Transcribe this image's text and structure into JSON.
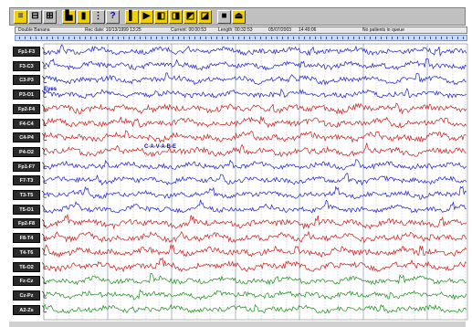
{
  "toolbar": {
    "buttons": [
      {
        "icon": "montage-icon",
        "glyph": "≡",
        "style": "y"
      },
      {
        "icon": "split-view-icon",
        "glyph": "⊟",
        "style": "n"
      },
      {
        "icon": "channels-icon",
        "glyph": "⊞",
        "style": "n"
      },
      {
        "icon": "chart-icon",
        "glyph": "▙",
        "style": "y"
      },
      {
        "icon": "book-icon",
        "glyph": "▮",
        "style": "y"
      },
      {
        "icon": "list-icon",
        "glyph": "⋮",
        "style": "n"
      },
      {
        "icon": "help-icon",
        "glyph": "?",
        "style": "q"
      },
      {
        "icon": "marker-icon",
        "glyph": "▌",
        "style": "y"
      },
      {
        "icon": "play-icon",
        "glyph": "▶",
        "style": "y"
      },
      {
        "icon": "doc1-icon",
        "glyph": "◧",
        "style": "y"
      },
      {
        "icon": "doc2-icon",
        "glyph": "◨",
        "style": "y"
      },
      {
        "icon": "doc3-icon",
        "glyph": "◩",
        "style": "y"
      },
      {
        "icon": "doc4-icon",
        "glyph": "◪",
        "style": "y"
      },
      {
        "icon": "stop-icon",
        "glyph": "■",
        "style": "n"
      },
      {
        "icon": "exit-icon",
        "glyph": "⏏",
        "style": "y"
      }
    ]
  },
  "infobar": {
    "montage": "Double Banana",
    "rec_date": "Rec date: 10/13/1999 13:25",
    "current": "Current: 00:00:53",
    "length": "Length: 00:32:53",
    "date": "05/07/2003",
    "time": "14:49:06",
    "patient": "No patients in queue"
  },
  "channels": [
    "Fp1-F3",
    "F3-C3",
    "C3-P3",
    "P3-O1",
    "Fp2-F4",
    "F4-C4",
    "C4-P4",
    "P4-O2",
    "Fp1-F7",
    "F7-T3",
    "T3-T5",
    "T5-O1",
    "Fp2-F8",
    "F8-T4",
    "T4-T6",
    "T6-O2",
    "Fz-Cz",
    "Cz-Pz",
    "A2-Zs"
  ],
  "annotations": [
    {
      "text": "Eyes",
      "channel": 3,
      "offset": 0
    },
    {
      "text": "C-A-V-A-B-E",
      "channel": 7,
      "offset": 110
    }
  ],
  "colors": {
    "blue": "#1a1acc",
    "red": "#c81818",
    "green": "#1a8a1a",
    "grid": "#9aa0b8"
  },
  "channel_colors": [
    "blue",
    "blue",
    "blue",
    "blue",
    "red",
    "red",
    "red",
    "red",
    "blue",
    "blue",
    "blue",
    "blue",
    "red",
    "red",
    "red",
    "red",
    "green",
    "green",
    "green"
  ]
}
